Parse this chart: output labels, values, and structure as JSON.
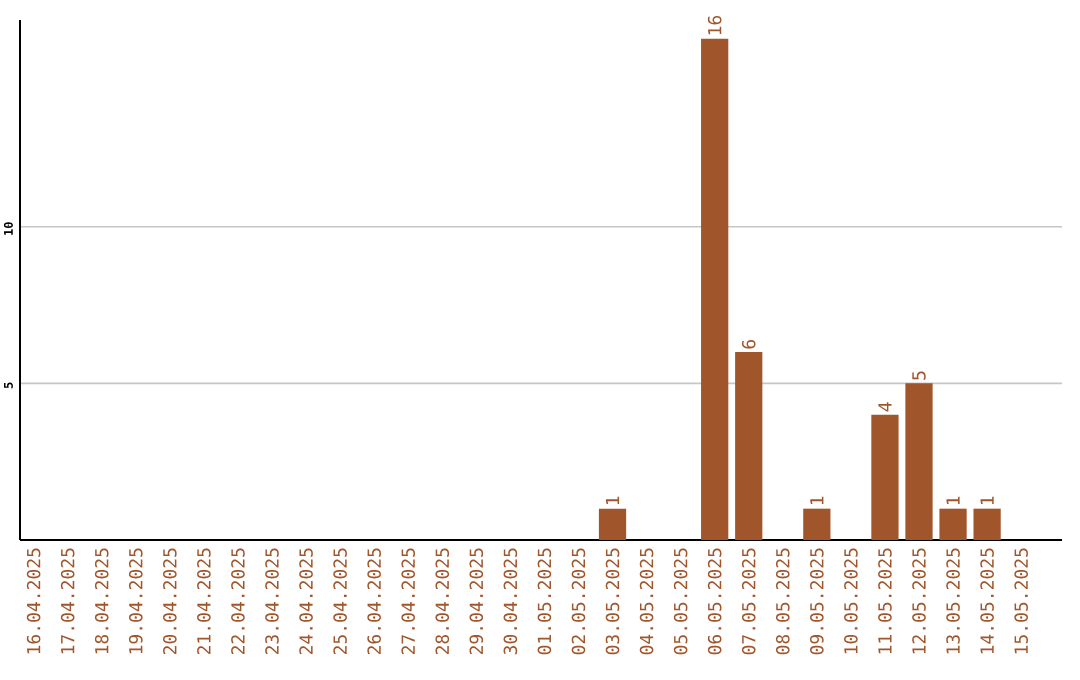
{
  "chart_data": {
    "type": "bar",
    "categories": [
      "16.04.2025",
      "17.04.2025",
      "18.04.2025",
      "19.04.2025",
      "20.04.2025",
      "21.04.2025",
      "22.04.2025",
      "23.04.2025",
      "24.04.2025",
      "25.04.2025",
      "26.04.2025",
      "27.04.2025",
      "28.04.2025",
      "29.04.2025",
      "30.04.2025",
      "01.05.2025",
      "02.05.2025",
      "03.05.2025",
      "04.05.2025",
      "05.05.2025",
      "06.05.2025",
      "07.05.2025",
      "08.05.2025",
      "09.05.2025",
      "10.05.2025",
      "11.05.2025",
      "12.05.2025",
      "13.05.2025",
      "14.05.2025",
      "15.05.2025"
    ],
    "values": [
      0,
      0,
      0,
      0,
      0,
      0,
      0,
      0,
      0,
      0,
      0,
      0,
      0,
      0,
      0,
      0,
      0,
      1,
      0,
      0,
      16,
      6,
      0,
      1,
      0,
      4,
      5,
      1,
      1,
      0
    ],
    "value_labels": [
      null,
      null,
      null,
      null,
      null,
      null,
      null,
      null,
      null,
      null,
      null,
      null,
      null,
      null,
      null,
      null,
      null,
      "1",
      null,
      null,
      "16",
      "6",
      null,
      "1",
      null,
      "4",
      "5",
      "1",
      "1",
      null
    ],
    "color": "#a0552a",
    "ylim": [
      0,
      16.6
    ],
    "yticks": [
      5,
      10
    ],
    "grid": "y"
  }
}
